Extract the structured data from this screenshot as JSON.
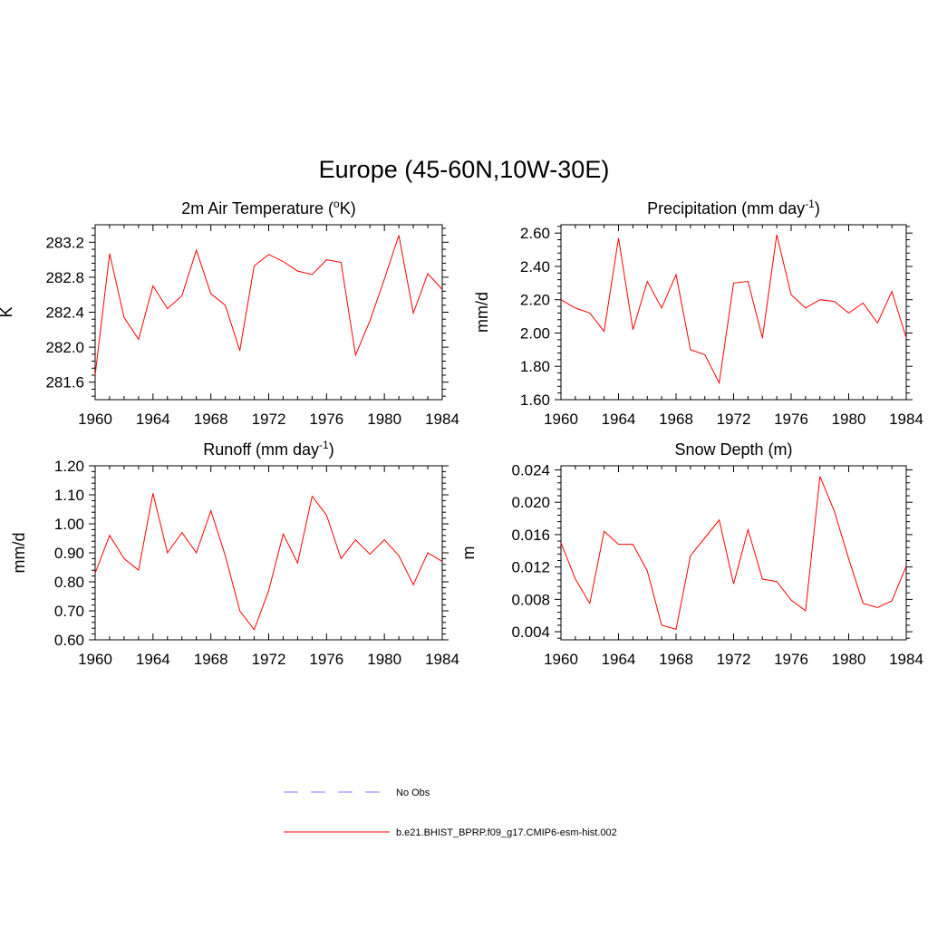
{
  "figure": {
    "title": "Europe (45-60N,10W-30E)"
  },
  "legend": {
    "entries": [
      {
        "label": "No Obs",
        "color": "#9999ff",
        "style": "dashed"
      },
      {
        "label": "b.e21.BHIST_BPRP.f09_g17.CMIP6-esm-hist.002",
        "color": "#ff0000",
        "style": "solid"
      }
    ]
  },
  "colors": {
    "model": "#ff0000",
    "obs": "#9999ff",
    "axis": "#000000"
  },
  "chart_data": [
    {
      "type": "line",
      "title": "2m Air Temperature (",
      "title_sup": "o",
      "title_after": "K)",
      "xlabel": "",
      "ylabel": "K",
      "xlim": [
        1960,
        1984
      ],
      "ylim": [
        281.4,
        283.4
      ],
      "x_ticks": [
        1960,
        1964,
        1968,
        1972,
        1976,
        1980,
        1984
      ],
      "x_tick_labels": [
        "1960",
        "1964",
        "1968",
        "1972",
        "1976",
        "1980",
        "1984"
      ],
      "y_ticks": [
        281.6,
        282.0,
        282.4,
        282.8,
        283.2
      ],
      "y_tick_labels": [
        "281.6",
        "282.0",
        "282.4",
        "282.8",
        "283.2"
      ],
      "series": [
        {
          "name": "b.e21.BHIST_BPRP.f09_g17.CMIP6-esm-hist.002",
          "x": [
            1960,
            1961,
            1962,
            1963,
            1964,
            1965,
            1966,
            1967,
            1968,
            1969,
            1970,
            1971,
            1972,
            1973,
            1974,
            1975,
            1976,
            1977,
            1978,
            1979,
            1980,
            1981,
            1982,
            1983,
            1984
          ],
          "values": [
            281.68,
            283.07,
            282.34,
            282.09,
            282.7,
            282.44,
            282.59,
            283.11,
            282.61,
            282.48,
            281.96,
            282.93,
            283.06,
            282.98,
            282.87,
            282.83,
            283.0,
            282.97,
            281.91,
            282.3,
            282.78,
            283.28,
            282.39,
            282.84,
            282.66
          ]
        }
      ]
    },
    {
      "type": "line",
      "title": "Precipitation (mm day",
      "title_sup": "-1",
      "title_after": ")",
      "xlabel": "",
      "ylabel": "mm/d",
      "xlim": [
        1960,
        1984
      ],
      "ylim": [
        1.6,
        2.65
      ],
      "x_ticks": [
        1960,
        1964,
        1968,
        1972,
        1976,
        1980,
        1984
      ],
      "x_tick_labels": [
        "1960",
        "1964",
        "1968",
        "1972",
        "1976",
        "1980",
        "1984"
      ],
      "y_ticks": [
        1.6,
        1.8,
        2.0,
        2.2,
        2.4,
        2.6
      ],
      "y_tick_labels": [
        "1.60",
        "1.80",
        "2.00",
        "2.20",
        "2.40",
        "2.60"
      ],
      "series": [
        {
          "name": "b.e21.BHIST_BPRP.f09_g17.CMIP6-esm-hist.002",
          "x": [
            1960,
            1961,
            1962,
            1963,
            1964,
            1965,
            1966,
            1967,
            1968,
            1969,
            1970,
            1971,
            1972,
            1973,
            1974,
            1975,
            1976,
            1977,
            1978,
            1979,
            1980,
            1981,
            1982,
            1983,
            1984
          ],
          "values": [
            2.2,
            2.15,
            2.12,
            2.01,
            2.57,
            2.02,
            2.31,
            2.15,
            2.35,
            1.9,
            1.87,
            1.7,
            2.3,
            2.31,
            1.97,
            2.59,
            2.23,
            2.15,
            2.2,
            2.19,
            2.12,
            2.18,
            2.06,
            2.25,
            1.97
          ]
        }
      ]
    },
    {
      "type": "line",
      "title": "Runoff (mm day",
      "title_sup": "-1",
      "title_after": ")",
      "xlabel": "",
      "ylabel": "mm/d",
      "xlim": [
        1960,
        1984
      ],
      "ylim": [
        0.6,
        1.2
      ],
      "x_ticks": [
        1960,
        1964,
        1968,
        1972,
        1976,
        1980,
        1984
      ],
      "x_tick_labels": [
        "1960",
        "1964",
        "1968",
        "1972",
        "1976",
        "1980",
        "1984"
      ],
      "y_ticks": [
        0.6,
        0.7,
        0.8,
        0.9,
        1.0,
        1.1,
        1.2
      ],
      "y_tick_labels": [
        "0.60",
        "0.70",
        "0.80",
        "0.90",
        "1.00",
        "1.10",
        "1.20"
      ],
      "series": [
        {
          "name": "b.e21.BHIST_BPRP.f09_g17.CMIP6-esm-hist.002",
          "x": [
            1960,
            1961,
            1962,
            1963,
            1964,
            1965,
            1966,
            1967,
            1968,
            1969,
            1970,
            1971,
            1972,
            1973,
            1974,
            1975,
            1976,
            1977,
            1978,
            1979,
            1980,
            1981,
            1982,
            1983,
            1984
          ],
          "values": [
            0.83,
            0.96,
            0.88,
            0.84,
            1.105,
            0.9,
            0.97,
            0.9,
            1.045,
            0.89,
            0.7,
            0.635,
            0.77,
            0.965,
            0.865,
            1.095,
            1.03,
            0.88,
            0.945,
            0.895,
            0.945,
            0.89,
            0.79,
            0.9,
            0.87
          ]
        }
      ]
    },
    {
      "type": "line",
      "title": "Snow Depth (m)",
      "title_sup": "",
      "title_after": "",
      "xlabel": "",
      "ylabel": "m",
      "xlim": [
        1960,
        1984
      ],
      "ylim": [
        0.003,
        0.0245
      ],
      "x_ticks": [
        1960,
        1964,
        1968,
        1972,
        1976,
        1980,
        1984
      ],
      "x_tick_labels": [
        "1960",
        "1964",
        "1968",
        "1972",
        "1976",
        "1980",
        "1984"
      ],
      "y_ticks": [
        0.004,
        0.008,
        0.012,
        0.016,
        0.02,
        0.024
      ],
      "y_tick_labels": [
        "0.004",
        "0.008",
        "0.012",
        "0.016",
        "0.020",
        "0.024"
      ],
      "series": [
        {
          "name": "b.e21.BHIST_BPRP.f09_g17.CMIP6-esm-hist.002",
          "x": [
            1960,
            1961,
            1962,
            1963,
            1964,
            1965,
            1966,
            1967,
            1968,
            1969,
            1970,
            1971,
            1972,
            1973,
            1974,
            1975,
            1976,
            1977,
            1978,
            1979,
            1980,
            1981,
            1982,
            1983,
            1984
          ],
          "values": [
            0.015,
            0.0105,
            0.0075,
            0.0164,
            0.0148,
            0.0148,
            0.0115,
            0.0048,
            0.0043,
            0.0134,
            0.0156,
            0.0178,
            0.0099,
            0.0166,
            0.0105,
            0.0102,
            0.0079,
            0.0066,
            0.0232,
            0.0189,
            0.013,
            0.0075,
            0.007,
            0.0078,
            0.0121
          ]
        }
      ]
    }
  ]
}
